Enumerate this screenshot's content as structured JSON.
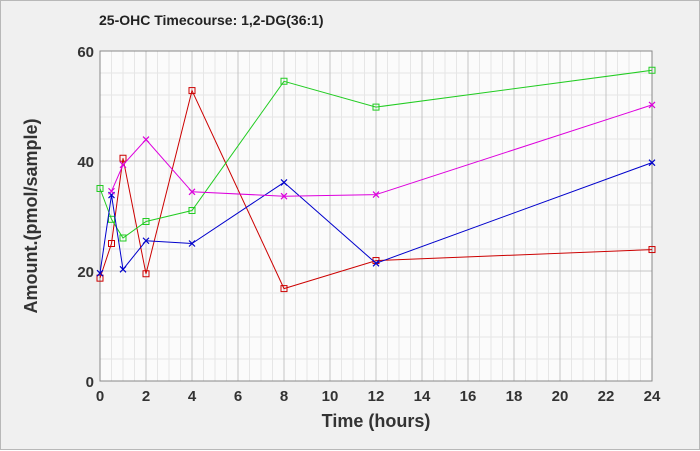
{
  "chart_data": {
    "type": "line",
    "title": "25-OHC Timecourse: 1,2-DG(36:1)",
    "xlabel": "Time (hours)",
    "ylabel": "Amount.(pmol/sample)",
    "xlim": [
      0,
      24
    ],
    "ylim": [
      0,
      60
    ],
    "x_ticks": [
      0,
      2,
      4,
      6,
      8,
      10,
      12,
      14,
      16,
      18,
      20,
      22,
      24
    ],
    "y_ticks": [
      0,
      20,
      40,
      60
    ],
    "grid": true,
    "legend": "none",
    "series": [
      {
        "color": "#cc0000",
        "marker": "square",
        "x": [
          0,
          0.5,
          1,
          2,
          4,
          8,
          12,
          24
        ],
        "y": [
          18.7,
          25.0,
          40.5,
          19.5,
          52.8,
          16.8,
          21.9,
          23.9
        ]
      },
      {
        "color": "#22cc22",
        "marker": "square",
        "x": [
          0,
          0.5,
          1,
          2,
          4,
          8,
          12,
          24
        ],
        "y": [
          35.0,
          29.4,
          26.0,
          29.0,
          31.0,
          54.5,
          49.8,
          56.5
        ]
      },
      {
        "color": "#0000cc",
        "marker": "x",
        "x": [
          0,
          0.5,
          1,
          2,
          4,
          8,
          12,
          24
        ],
        "y": [
          19.6,
          33.8,
          20.3,
          25.5,
          25.0,
          36.1,
          21.4,
          39.7
        ]
      },
      {
        "color": "#dd00dd",
        "marker": "x",
        "x": [
          0.5,
          1,
          2,
          4,
          8,
          12,
          24
        ],
        "y": [
          34.5,
          39.3,
          43.9,
          34.4,
          33.6,
          33.9,
          50.2
        ]
      }
    ]
  }
}
